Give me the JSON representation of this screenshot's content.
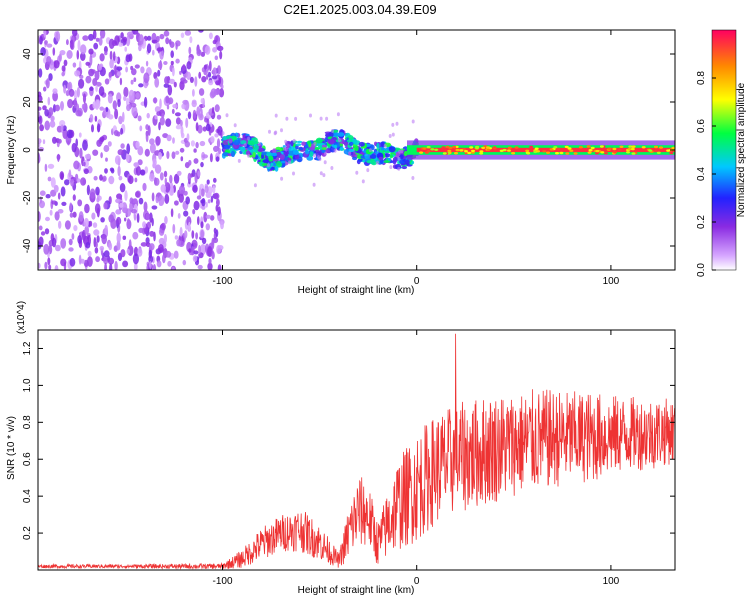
{
  "title": "C2E1.2025.003.04.39.E09",
  "colors": {
    "signal": "#ee3333",
    "frame": "#000000",
    "noise": "#7a2cf0"
  },
  "chart_data": [
    {
      "type": "heatmap",
      "xlabel": "Height of straight line (km)",
      "ylabel": "Frequency (Hz)",
      "xlim": [
        -195,
        133
      ],
      "ylim": [
        -50,
        50
      ],
      "x_ticks": [
        -100,
        0,
        100
      ],
      "y_ticks": [
        -40,
        -20,
        0,
        20,
        40
      ],
      "colorbar": {
        "label": "Normalized spectral amplitude",
        "range": [
          0,
          1
        ],
        "ticks": [
          0.0,
          0.2,
          0.4,
          0.6,
          0.8
        ],
        "colormap": "rainbow (magenta-blue-cyan-green-yellow-red)"
      },
      "regions": [
        {
          "x_range": [
            -195,
            -100
          ],
          "description": "broadband noise across all frequencies",
          "amplitude": 0.1
        },
        {
          "x_range": [
            -100,
            0
          ],
          "description": "narrow band near 0 Hz, wandering between about -5 and 5 Hz",
          "amplitude": 0.4
        },
        {
          "x_range": [
            0,
            133
          ],
          "description": "strong stable line at 0 Hz",
          "amplitude": 0.95
        }
      ]
    },
    {
      "type": "line",
      "xlabel": "Height of straight line (km)",
      "ylabel": "SNR (10 * v/v)",
      "y_multiplier": "(x10^4)",
      "xlim": [
        -195,
        133
      ],
      "ylim": [
        0,
        1.3
      ],
      "x_ticks": [
        -100,
        0,
        100
      ],
      "y_ticks": [
        0.2,
        0.4,
        0.6,
        0.8,
        1.0,
        1.2
      ],
      "series": [
        {
          "x": [
            -195,
            -150,
            -100,
            -90,
            -80,
            -70,
            -60,
            -50,
            -40,
            -35,
            -30,
            -25,
            -20,
            -10,
            0,
            10,
            20,
            30,
            40,
            50,
            60,
            70,
            80,
            90,
            100,
            110,
            120,
            130
          ],
          "y": [
            0.02,
            0.02,
            0.02,
            0.06,
            0.14,
            0.2,
            0.22,
            0.15,
            0.05,
            0.2,
            0.32,
            0.3,
            0.14,
            0.35,
            0.45,
            0.55,
            0.6,
            0.63,
            0.66,
            0.68,
            0.7,
            0.71,
            0.72,
            0.72,
            0.73,
            0.74,
            0.74,
            0.75
          ],
          "spread": [
            0.01,
            0.01,
            0.015,
            0.05,
            0.09,
            0.1,
            0.12,
            0.1,
            0.04,
            0.15,
            0.2,
            0.18,
            0.12,
            0.25,
            0.3,
            0.3,
            0.3,
            0.3,
            0.3,
            0.28,
            0.28,
            0.27,
            0.25,
            0.25,
            0.22,
            0.2,
            0.2,
            0.18
          ],
          "peak": {
            "x": 20,
            "y": 1.28
          }
        }
      ]
    }
  ]
}
